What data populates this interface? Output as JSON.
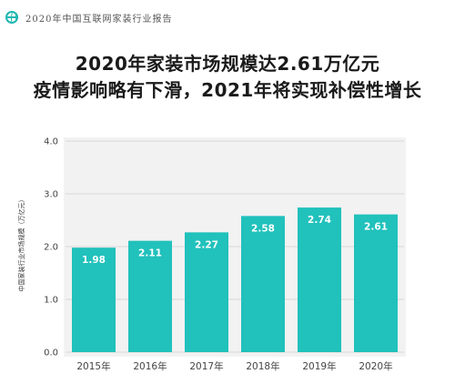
{
  "header": {
    "report_title": "2020年中国互联网家装行业报告",
    "accent": "#1fb7b0"
  },
  "title": {
    "line1": "2020年家装市场规模达2.61万亿元",
    "line2": "疫情影响略有下滑，2021年将实现补偿性增长"
  },
  "chart_data": {
    "type": "bar",
    "categories": [
      "2015年",
      "2016年",
      "2017年",
      "2018年",
      "2019年",
      "2020年"
    ],
    "values": [
      1.98,
      2.11,
      2.27,
      2.58,
      2.74,
      2.61
    ],
    "value_labels": [
      "1.98",
      "2.11",
      "2.27",
      "2.58",
      "2.74",
      "2.61"
    ],
    "ylabel": "中国家装行业市场规模（万亿元）",
    "ylim": [
      0,
      4
    ],
    "yticks": [
      0,
      1,
      2,
      3,
      4
    ],
    "ytick_labels": [
      "0.0",
      "1.0",
      "2.0",
      "3.0",
      "4.0"
    ],
    "grid": true,
    "bar_color": "#21c1bc",
    "panel_color": "#f2f2f2",
    "label_color": "#ffffff"
  }
}
